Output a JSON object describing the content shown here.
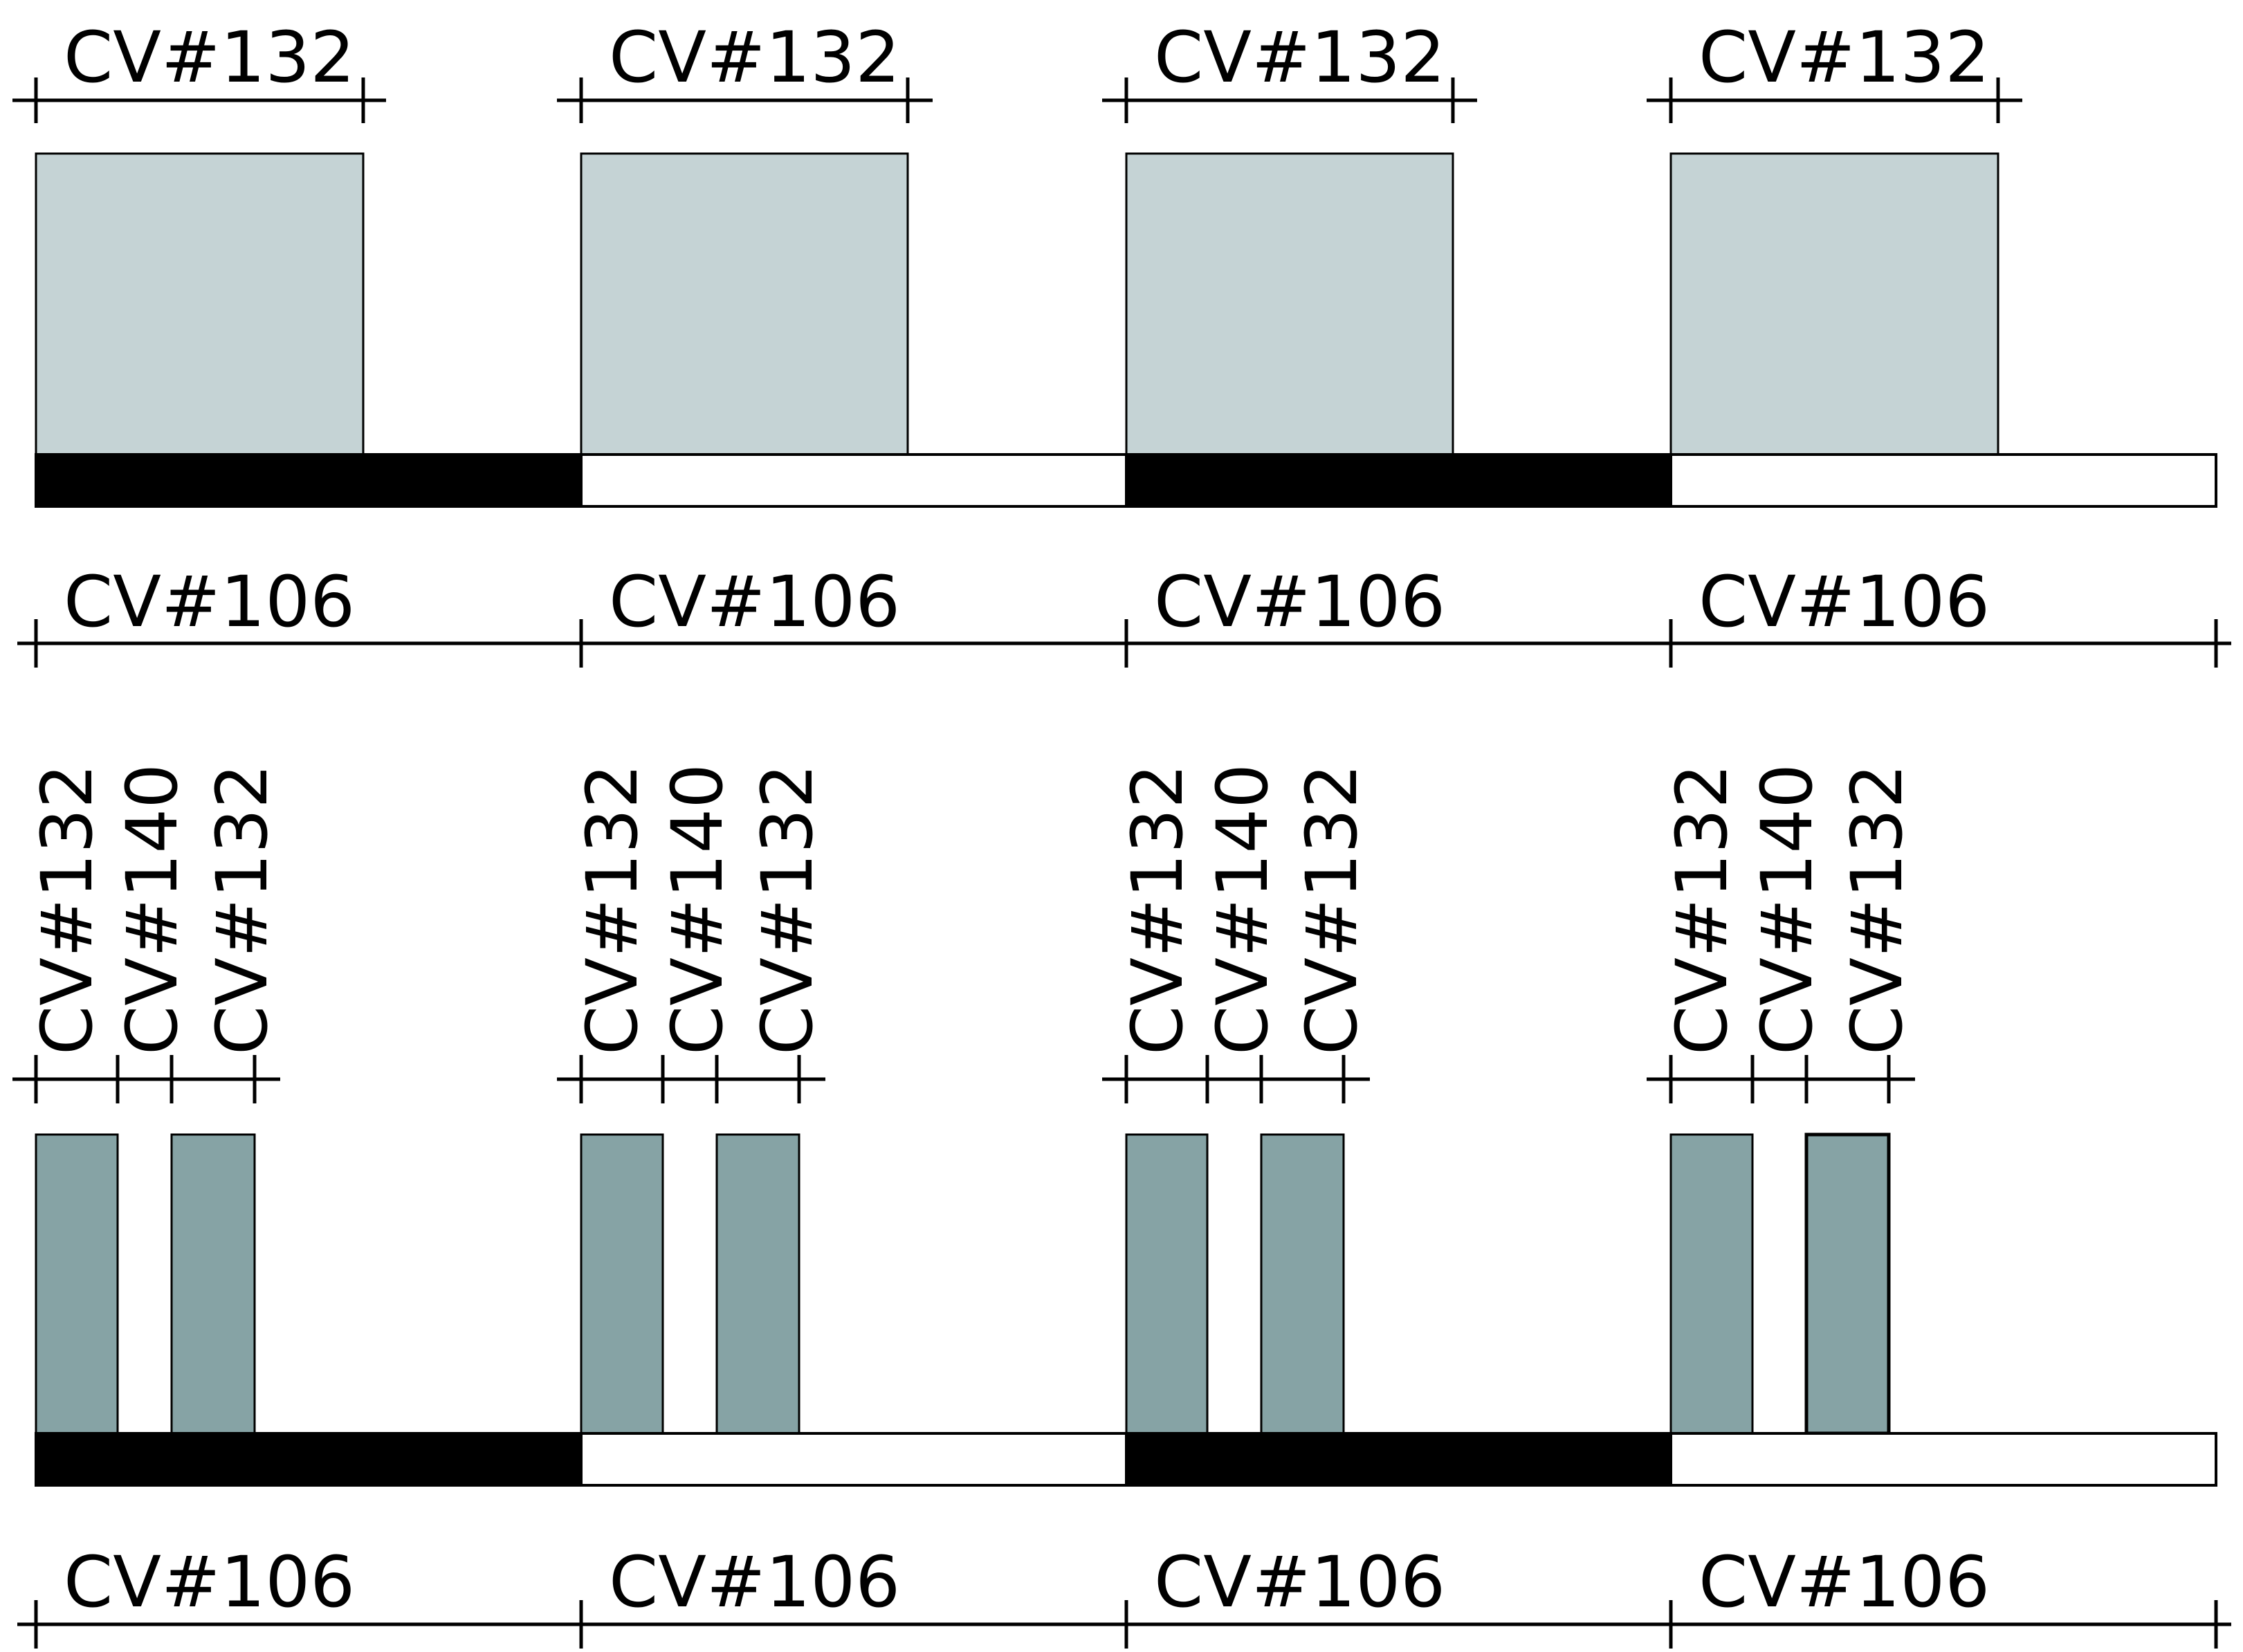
{
  "top_panel": {
    "upper_dimension_labels": [
      "CV#132",
      "CV#132",
      "CV#132",
      "CV#132"
    ],
    "lower_dimension_labels": [
      "CV#106",
      "CV#106",
      "CV#106",
      "CV#106"
    ],
    "bar_segments": [
      "black",
      "white",
      "black",
      "white"
    ],
    "box_fill": "#c5d3d5"
  },
  "bottom_panel": {
    "upper_dimension_groups": [
      [
        "CV#132",
        "CV#140",
        "CV#132"
      ],
      [
        "CV#132",
        "CV#140",
        "CV#132"
      ],
      [
        "CV#132",
        "CV#140",
        "CV#132"
      ],
      [
        "CV#132",
        "CV#140",
        "CV#132"
      ]
    ],
    "lower_dimension_labels": [
      "CV#106",
      "CV#106",
      "CV#106",
      "CV#106"
    ],
    "bar_segments": [
      "black",
      "white",
      "black",
      "white"
    ],
    "box_fill": "#86a3a5"
  }
}
